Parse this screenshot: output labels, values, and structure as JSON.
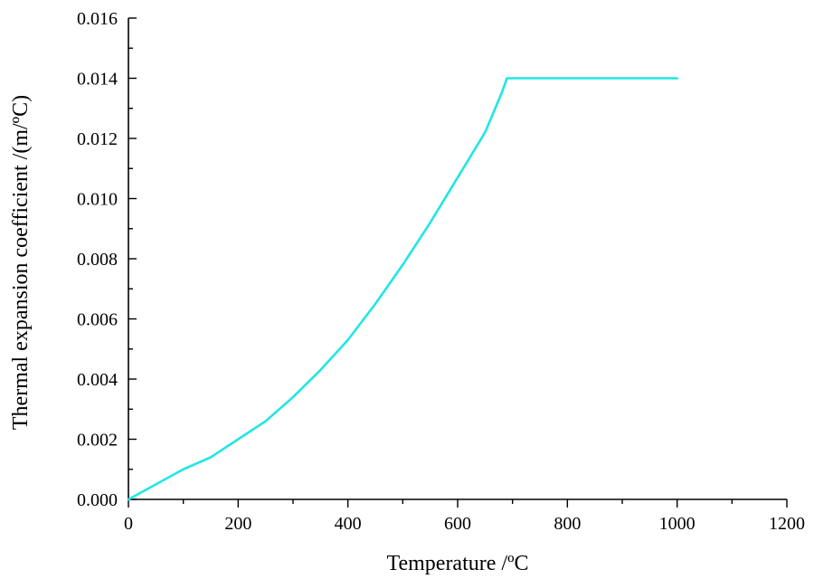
{
  "chart_data": {
    "type": "line",
    "title": "",
    "xlabel": "Temperature /ºC",
    "ylabel": "Thermal expansion coefficient /(m/ºC)",
    "xlim": [
      0,
      1200
    ],
    "ylim": [
      0,
      0.016
    ],
    "xticks": [
      0,
      200,
      400,
      600,
      800,
      1000,
      1200
    ],
    "xtick_labels": [
      "0",
      "200",
      "400",
      "600",
      "800",
      "1000",
      "1200"
    ],
    "yticks": [
      0,
      0.002,
      0.004,
      0.006,
      0.008,
      0.01,
      0.012,
      0.014,
      0.016
    ],
    "ytick_labels": [
      "0.000",
      "0.002",
      "0.004",
      "0.006",
      "0.008",
      "0.010",
      "0.012",
      "0.014",
      "0.016"
    ],
    "grid": false,
    "legend": "none",
    "series": [
      {
        "color": "#22e5e5",
        "x": [
          0,
          50,
          100,
          150,
          200,
          250,
          300,
          350,
          400,
          450,
          500,
          550,
          600,
          650,
          680,
          690,
          700,
          750,
          800,
          900,
          1000
        ],
        "y": [
          0,
          0.0005,
          0.001,
          0.0014,
          0.002,
          0.0026,
          0.0034,
          0.0043,
          0.0053,
          0.0065,
          0.0078,
          0.0092,
          0.0107,
          0.0122,
          0.0135,
          0.014,
          0.014,
          0.014,
          0.014,
          0.014,
          0.014
        ]
      }
    ]
  }
}
